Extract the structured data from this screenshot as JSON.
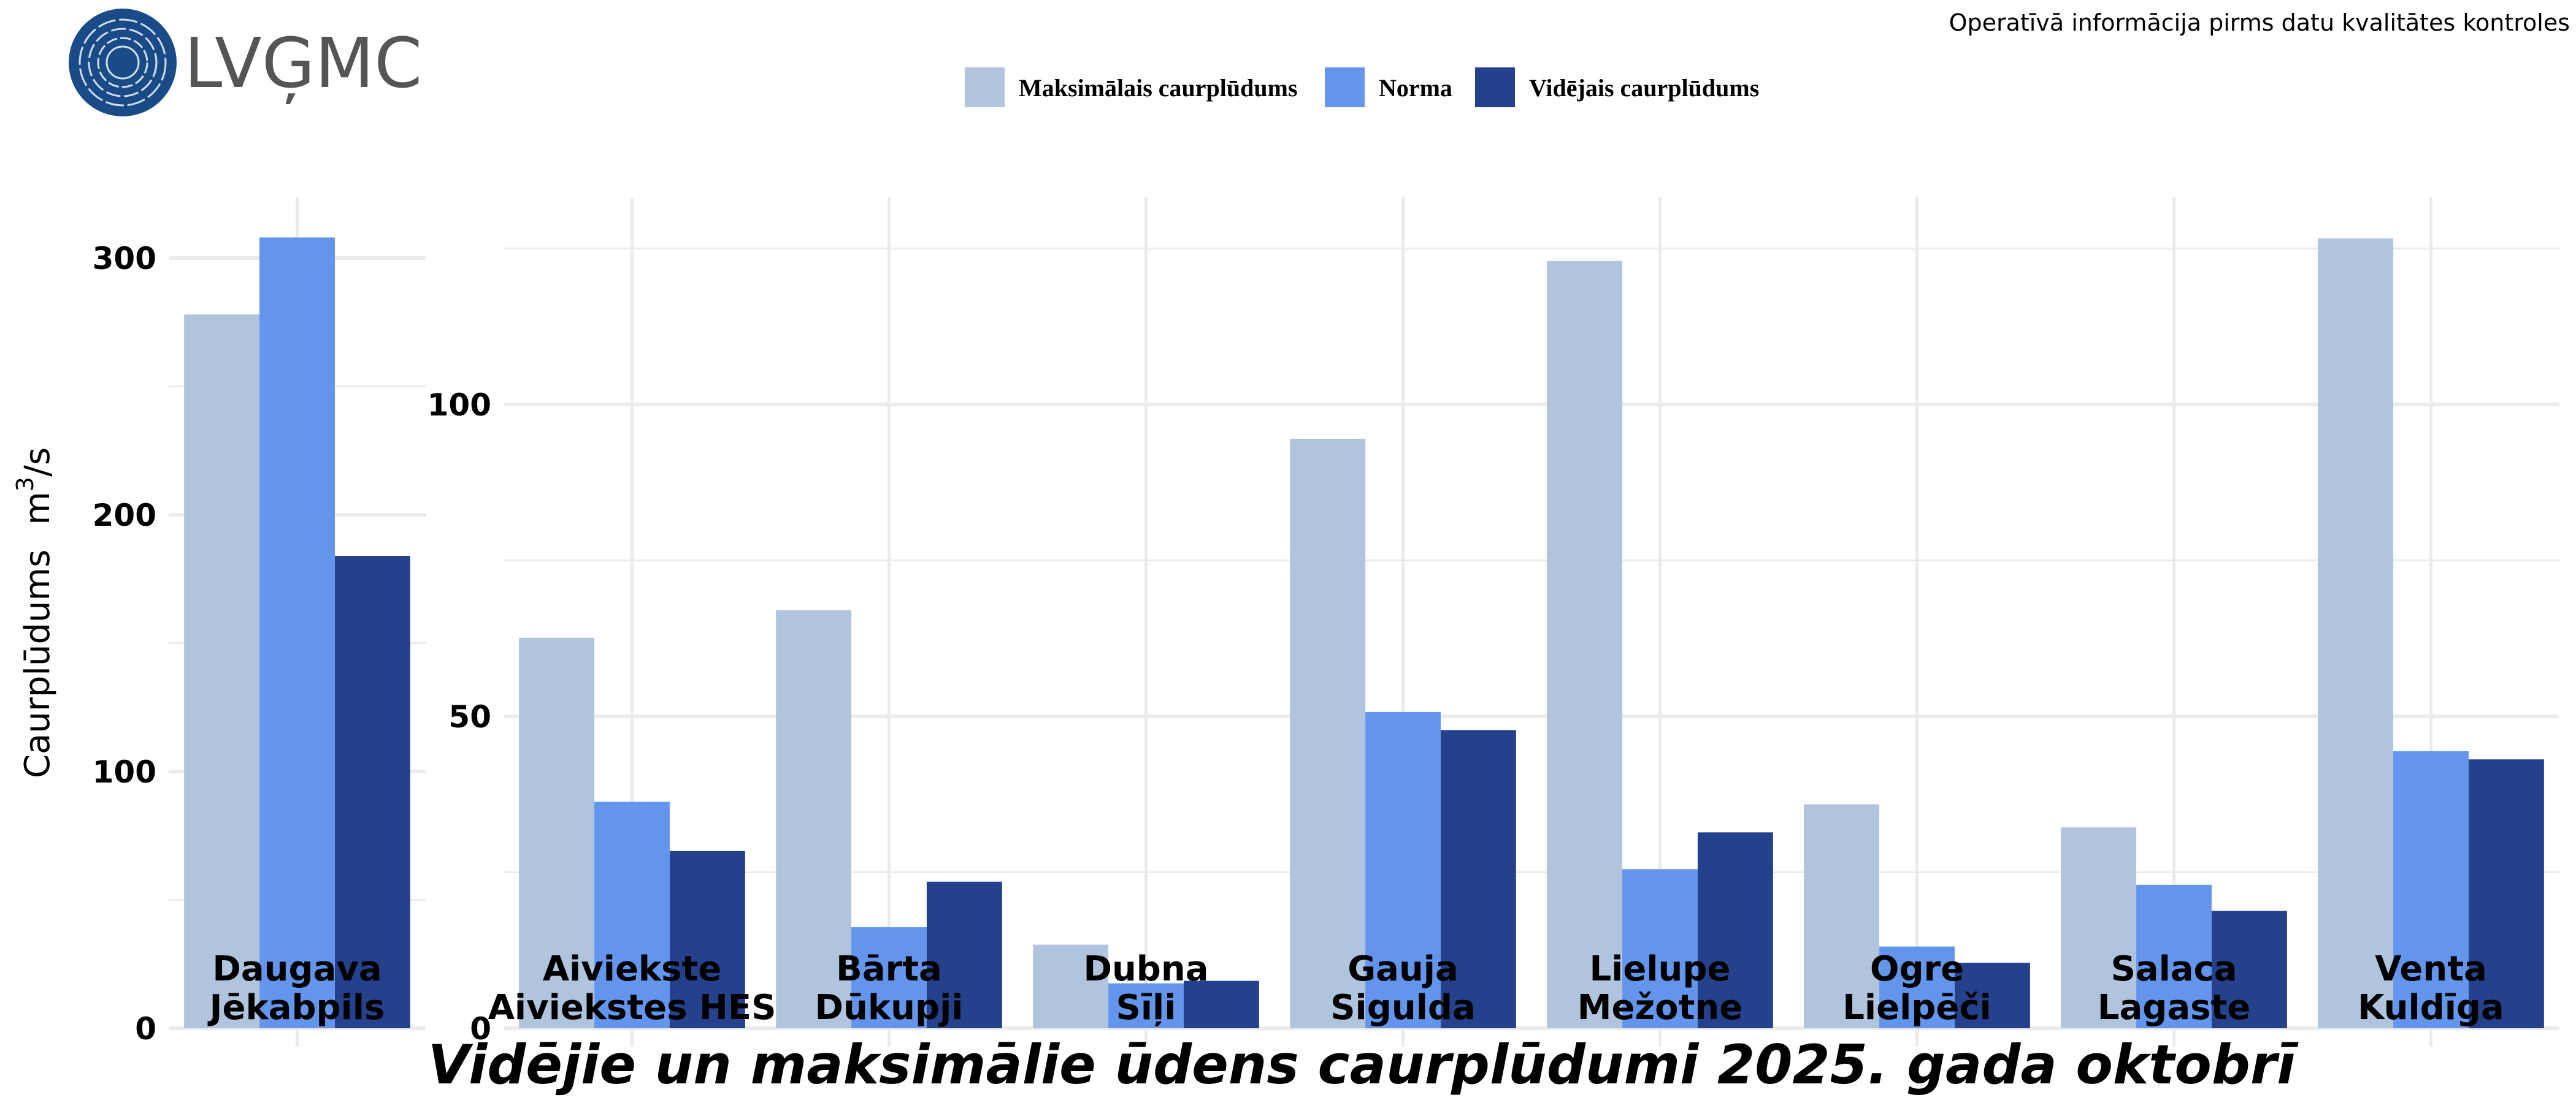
{
  "header": {
    "logo_text": "LVĢMC",
    "note": "Operatīvā informācija pirms datu kvalitātes kontroles"
  },
  "colors": {
    "max": "#B0C4DE",
    "norma": "#6495ED",
    "mean": "#26418B",
    "grid": "#EBEBEB"
  },
  "chart_data": {
    "type": "bar",
    "title": "Vidējie un maksimālie ūdens caurplūdumi 2025. gada oktobrī",
    "ylabel": "Caurplūdums",
    "ylabel_unit": {
      "base": "m",
      "sup": "3",
      "rest": "/s"
    },
    "legend": [
      "Maksimālais caurplūdums",
      "Norma",
      "Vidējais caurplūdums"
    ],
    "legend_position": "top",
    "grid": true,
    "panels": [
      {
        "ylim": [
          0,
          320
        ],
        "yticks": [
          "0",
          "100",
          "200",
          "300"
        ],
        "ytick_values": [
          0,
          100,
          200,
          300
        ],
        "categories": [
          [
            "Daugava",
            "Jēkabpils"
          ]
        ],
        "series": [
          {
            "name": "Maksimālais caurplūdums",
            "values": [
              278
            ]
          },
          {
            "name": "Norma",
            "values": [
              308
            ]
          },
          {
            "name": "Vidējais caurplūdums",
            "values": [
              184
            ]
          }
        ]
      },
      {
        "ylim": [
          0,
          132
        ],
        "yticks": [
          "0",
          "50",
          "100"
        ],
        "ytick_values": [
          0,
          50,
          100
        ],
        "categories": [
          [
            "Aiviekste",
            "Aiviekstes HES"
          ],
          [
            "Bārta",
            "Dūkupji"
          ],
          [
            "Dubna",
            "Sīļi"
          ],
          [
            "Gauja",
            "Sigulda"
          ],
          [
            "Lielupe",
            "Mežotne"
          ],
          [
            "Ogre",
            "Lielpēči"
          ],
          [
            "Salaca",
            "Lagaste"
          ],
          [
            "Venta",
            "Kuldīga"
          ]
        ],
        "series": [
          {
            "name": "Maksimālais caurplūdums",
            "values": [
              62.6,
              67.0,
              13.4,
              94.5,
              123.0,
              35.9,
              32.2,
              126.6
            ]
          },
          {
            "name": "Norma",
            "values": [
              36.3,
              16.2,
              7.2,
              50.7,
              25.5,
              13.1,
              23.0,
              44.4
            ]
          },
          {
            "name": "Vidējais caurplūdums",
            "values": [
              28.4,
              23.5,
              7.6,
              47.8,
              31.4,
              10.5,
              18.8,
              43.1
            ]
          }
        ]
      }
    ]
  }
}
